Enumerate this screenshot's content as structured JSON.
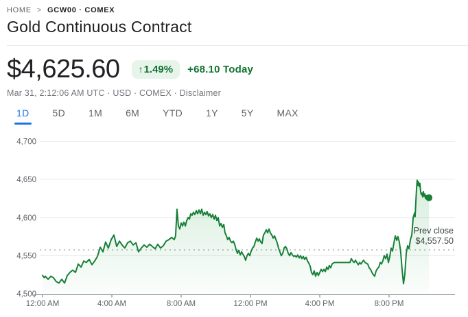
{
  "breadcrumb": {
    "home": "HOME",
    "separator": ">",
    "current": "GCW00 · COMEX"
  },
  "header": {
    "title": "Gold Continuous Contract"
  },
  "quote": {
    "price": "$4,625.60",
    "change_arrow": "↑",
    "change_percent": "1.49%",
    "change_today": "+68.10 Today",
    "meta_prefix": "Mar 31, 2:12:06 AM UTC · USD · COMEX · ",
    "disclaimer": "Disclaimer"
  },
  "range_tabs": [
    {
      "label": "1D",
      "active": true
    },
    {
      "label": "5D",
      "active": false
    },
    {
      "label": "1M",
      "active": false
    },
    {
      "label": "6M",
      "active": false
    },
    {
      "label": "YTD",
      "active": false
    },
    {
      "label": "1Y",
      "active": false
    },
    {
      "label": "5Y",
      "active": false
    },
    {
      "label": "MAX",
      "active": false
    }
  ],
  "colors": {
    "line_green": "#188038",
    "fill_green": "#34a853",
    "text_green": "#137333",
    "badge_bg": "#e6f4ea",
    "accent_blue": "#1a73e8",
    "grid": "#e8eaed",
    "axis": "#80868b",
    "tick_label": "#5f6368",
    "annotation": "#3c4043",
    "dark_text": "#202124"
  },
  "chart_data": {
    "type": "line",
    "title": "Gold Continuous Contract — 1D intraday price (USD)",
    "unit": "USD",
    "current_price": 4625.6,
    "prev_close": 4557.5,
    "annotation": {
      "line1": "Prev close",
      "line2": "$4,557.50"
    },
    "ylim": [
      4500,
      4700
    ],
    "yticks": [
      {
        "value": 4700,
        "label": "4,700"
      },
      {
        "value": 4650,
        "label": "4,650"
      },
      {
        "value": 4600,
        "label": "4,600"
      },
      {
        "value": 4550,
        "label": "4,550"
      },
      {
        "value": 4500,
        "label": "4,500"
      }
    ],
    "xticks": [
      {
        "hour": 0,
        "label": "12:00 AM"
      },
      {
        "hour": 4,
        "label": "4:00 AM"
      },
      {
        "hour": 8,
        "label": "8:00 AM"
      },
      {
        "hour": 12,
        "label": "12:00 PM"
      },
      {
        "hour": 16,
        "label": "4:00 PM"
      },
      {
        "hour": 20,
        "label": "8:00 PM"
      }
    ],
    "grid": true,
    "legend": "none",
    "series": [
      {
        "name": "price",
        "points": [
          [
            0,
            4524
          ],
          [
            0.1,
            4521
          ],
          [
            0.16,
            4523
          ],
          [
            0.32,
            4519
          ],
          [
            0.48,
            4523
          ],
          [
            0.63,
            4521
          ],
          [
            0.79,
            4516
          ],
          [
            0.95,
            4514
          ],
          [
            1.11,
            4519
          ],
          [
            1.27,
            4514
          ],
          [
            1.43,
            4524
          ],
          [
            1.58,
            4528
          ],
          [
            1.74,
            4531
          ],
          [
            1.9,
            4528
          ],
          [
            2.06,
            4539
          ],
          [
            2.22,
            4535
          ],
          [
            2.38,
            4543
          ],
          [
            2.53,
            4541
          ],
          [
            2.69,
            4545
          ],
          [
            2.85,
            4538
          ],
          [
            3.01,
            4543
          ],
          [
            3.17,
            4549
          ],
          [
            3.33,
            4561
          ],
          [
            3.49,
            4555
          ],
          [
            3.64,
            4568
          ],
          [
            3.8,
            4560
          ],
          [
            3.96,
            4571
          ],
          [
            4.12,
            4577
          ],
          [
            4.28,
            4562
          ],
          [
            4.44,
            4569
          ],
          [
            4.59,
            4564
          ],
          [
            4.75,
            4560
          ],
          [
            4.91,
            4567
          ],
          [
            5.07,
            4569
          ],
          [
            5.23,
            4564
          ],
          [
            5.39,
            4567
          ],
          [
            5.54,
            4555
          ],
          [
            5.7,
            4560
          ],
          [
            5.86,
            4564
          ],
          [
            6.02,
            4561
          ],
          [
            6.18,
            4565
          ],
          [
            6.34,
            4562
          ],
          [
            6.5,
            4559
          ],
          [
            6.65,
            4565
          ],
          [
            6.81,
            4560
          ],
          [
            6.97,
            4563
          ],
          [
            7.13,
            4569
          ],
          [
            7.29,
            4571
          ],
          [
            7.45,
            4574
          ],
          [
            7.6,
            4571
          ],
          [
            7.68,
            4576
          ],
          [
            7.76,
            4611
          ],
          [
            7.84,
            4589
          ],
          [
            7.92,
            4585
          ],
          [
            8,
            4593
          ],
          [
            8.08,
            4589
          ],
          [
            8.16,
            4594
          ],
          [
            8.24,
            4589
          ],
          [
            8.32,
            4596
          ],
          [
            8.4,
            4600
          ],
          [
            8.48,
            4598
          ],
          [
            8.55,
            4605
          ],
          [
            8.63,
            4603
          ],
          [
            8.71,
            4607
          ],
          [
            8.79,
            4604
          ],
          [
            8.87,
            4609
          ],
          [
            8.95,
            4605
          ],
          [
            9.03,
            4610
          ],
          [
            9.11,
            4605
          ],
          [
            9.19,
            4611
          ],
          [
            9.27,
            4603
          ],
          [
            9.35,
            4607
          ],
          [
            9.43,
            4604
          ],
          [
            9.5,
            4608
          ],
          [
            9.58,
            4602
          ],
          [
            9.66,
            4605
          ],
          [
            9.74,
            4600
          ],
          [
            9.82,
            4604
          ],
          [
            9.9,
            4598
          ],
          [
            9.98,
            4603
          ],
          [
            10.06,
            4596
          ],
          [
            10.14,
            4600
          ],
          [
            10.22,
            4589
          ],
          [
            10.3,
            4592
          ],
          [
            10.38,
            4587
          ],
          [
            10.46,
            4591
          ],
          [
            10.53,
            4580
          ],
          [
            10.61,
            4576
          ],
          [
            10.69,
            4571
          ],
          [
            10.77,
            4574
          ],
          [
            10.85,
            4569
          ],
          [
            10.93,
            4567
          ],
          [
            11.01,
            4569
          ],
          [
            11.09,
            4565
          ],
          [
            11.17,
            4558
          ],
          [
            11.25,
            4553
          ],
          [
            11.33,
            4557
          ],
          [
            11.41,
            4551
          ],
          [
            11.49,
            4555
          ],
          [
            11.56,
            4552
          ],
          [
            11.64,
            4549
          ],
          [
            11.72,
            4544
          ],
          [
            11.8,
            4550
          ],
          [
            11.88,
            4553
          ],
          [
            11.96,
            4550
          ],
          [
            12.04,
            4556
          ],
          [
            12.12,
            4560
          ],
          [
            12.2,
            4562
          ],
          [
            12.28,
            4568
          ],
          [
            12.36,
            4573
          ],
          [
            12.44,
            4569
          ],
          [
            12.51,
            4572
          ],
          [
            12.59,
            4568
          ],
          [
            12.67,
            4566
          ],
          [
            12.75,
            4577
          ],
          [
            12.83,
            4580
          ],
          [
            12.91,
            4584
          ],
          [
            12.99,
            4580
          ],
          [
            13.07,
            4585
          ],
          [
            13.15,
            4580
          ],
          [
            13.23,
            4577
          ],
          [
            13.31,
            4573
          ],
          [
            13.39,
            4576
          ],
          [
            13.47,
            4571
          ],
          [
            13.54,
            4567
          ],
          [
            13.62,
            4560
          ],
          [
            13.7,
            4555
          ],
          [
            13.78,
            4550
          ],
          [
            13.86,
            4553
          ],
          [
            13.94,
            4560
          ],
          [
            14.02,
            4562
          ],
          [
            14.1,
            4559
          ],
          [
            14.18,
            4553
          ],
          [
            14.26,
            4550
          ],
          [
            14.34,
            4554
          ],
          [
            14.42,
            4551
          ],
          [
            14.5,
            4549
          ],
          [
            14.57,
            4550
          ],
          [
            14.65,
            4548
          ],
          [
            14.73,
            4551
          ],
          [
            14.81,
            4547
          ],
          [
            14.89,
            4550
          ],
          [
            14.97,
            4546
          ],
          [
            15.05,
            4549
          ],
          [
            15.13,
            4545
          ],
          [
            15.21,
            4548
          ],
          [
            15.29,
            4543
          ],
          [
            15.37,
            4540
          ],
          [
            15.45,
            4536
          ],
          [
            15.52,
            4528
          ],
          [
            15.6,
            4525
          ],
          [
            15.68,
            4530
          ],
          [
            15.76,
            4523
          ],
          [
            15.84,
            4528
          ],
          [
            15.92,
            4524
          ],
          [
            16,
            4528
          ],
          [
            16.08,
            4532
          ],
          [
            16.16,
            4529
          ],
          [
            16.24,
            4532
          ],
          [
            16.32,
            4529
          ],
          [
            16.4,
            4535
          ],
          [
            16.48,
            4532
          ],
          [
            16.55,
            4537
          ],
          [
            16.63,
            4534
          ],
          [
            16.71,
            4539
          ],
          [
            16.83,
            4541
          ],
          [
            17.74,
            4541
          ],
          [
            17.82,
            4546
          ],
          [
            17.9,
            4543
          ],
          [
            17.98,
            4541
          ],
          [
            18.06,
            4544
          ],
          [
            18.14,
            4541
          ],
          [
            18.22,
            4538
          ],
          [
            18.3,
            4541
          ],
          [
            18.38,
            4539
          ],
          [
            18.46,
            4542
          ],
          [
            18.53,
            4544
          ],
          [
            18.61,
            4541
          ],
          [
            18.69,
            4540
          ],
          [
            18.77,
            4539
          ],
          [
            18.85,
            4534
          ],
          [
            18.93,
            4532
          ],
          [
            19.01,
            4528
          ],
          [
            19.09,
            4525
          ],
          [
            19.17,
            4523
          ],
          [
            19.25,
            4530
          ],
          [
            19.33,
            4533
          ],
          [
            19.41,
            4535
          ],
          [
            19.49,
            4541
          ],
          [
            19.56,
            4539
          ],
          [
            19.64,
            4543
          ],
          [
            19.72,
            4550
          ],
          [
            19.8,
            4546
          ],
          [
            19.88,
            4552
          ],
          [
            19.96,
            4541
          ],
          [
            20.04,
            4549
          ],
          [
            20.12,
            4560
          ],
          [
            20.2,
            4556
          ],
          [
            20.28,
            4567
          ],
          [
            20.36,
            4576
          ],
          [
            20.44,
            4570
          ],
          [
            20.51,
            4575
          ],
          [
            20.59,
            4568
          ],
          [
            20.67,
            4555
          ],
          [
            20.75,
            4532
          ],
          [
            20.83,
            4513
          ],
          [
            20.91,
            4526
          ],
          [
            20.99,
            4553
          ],
          [
            21.07,
            4563
          ],
          [
            21.15,
            4559
          ],
          [
            21.23,
            4571
          ],
          [
            21.31,
            4577
          ],
          [
            21.39,
            4600
          ],
          [
            21.47,
            4606
          ],
          [
            21.5,
            4601
          ],
          [
            21.58,
            4636
          ],
          [
            21.62,
            4649
          ],
          [
            21.66,
            4642
          ],
          [
            21.7,
            4647
          ],
          [
            21.74,
            4641
          ],
          [
            21.78,
            4645
          ],
          [
            21.82,
            4634
          ],
          [
            21.86,
            4630
          ],
          [
            21.9,
            4632
          ],
          [
            21.94,
            4627
          ],
          [
            21.98,
            4634
          ],
          [
            22.02,
            4628
          ],
          [
            22.06,
            4631
          ],
          [
            22.1,
            4625
          ],
          [
            22.14,
            4629
          ],
          [
            22.18,
            4626
          ],
          [
            22.22,
            4629
          ],
          [
            22.26,
            4627
          ],
          [
            22.3,
            4626
          ]
        ]
      }
    ]
  }
}
